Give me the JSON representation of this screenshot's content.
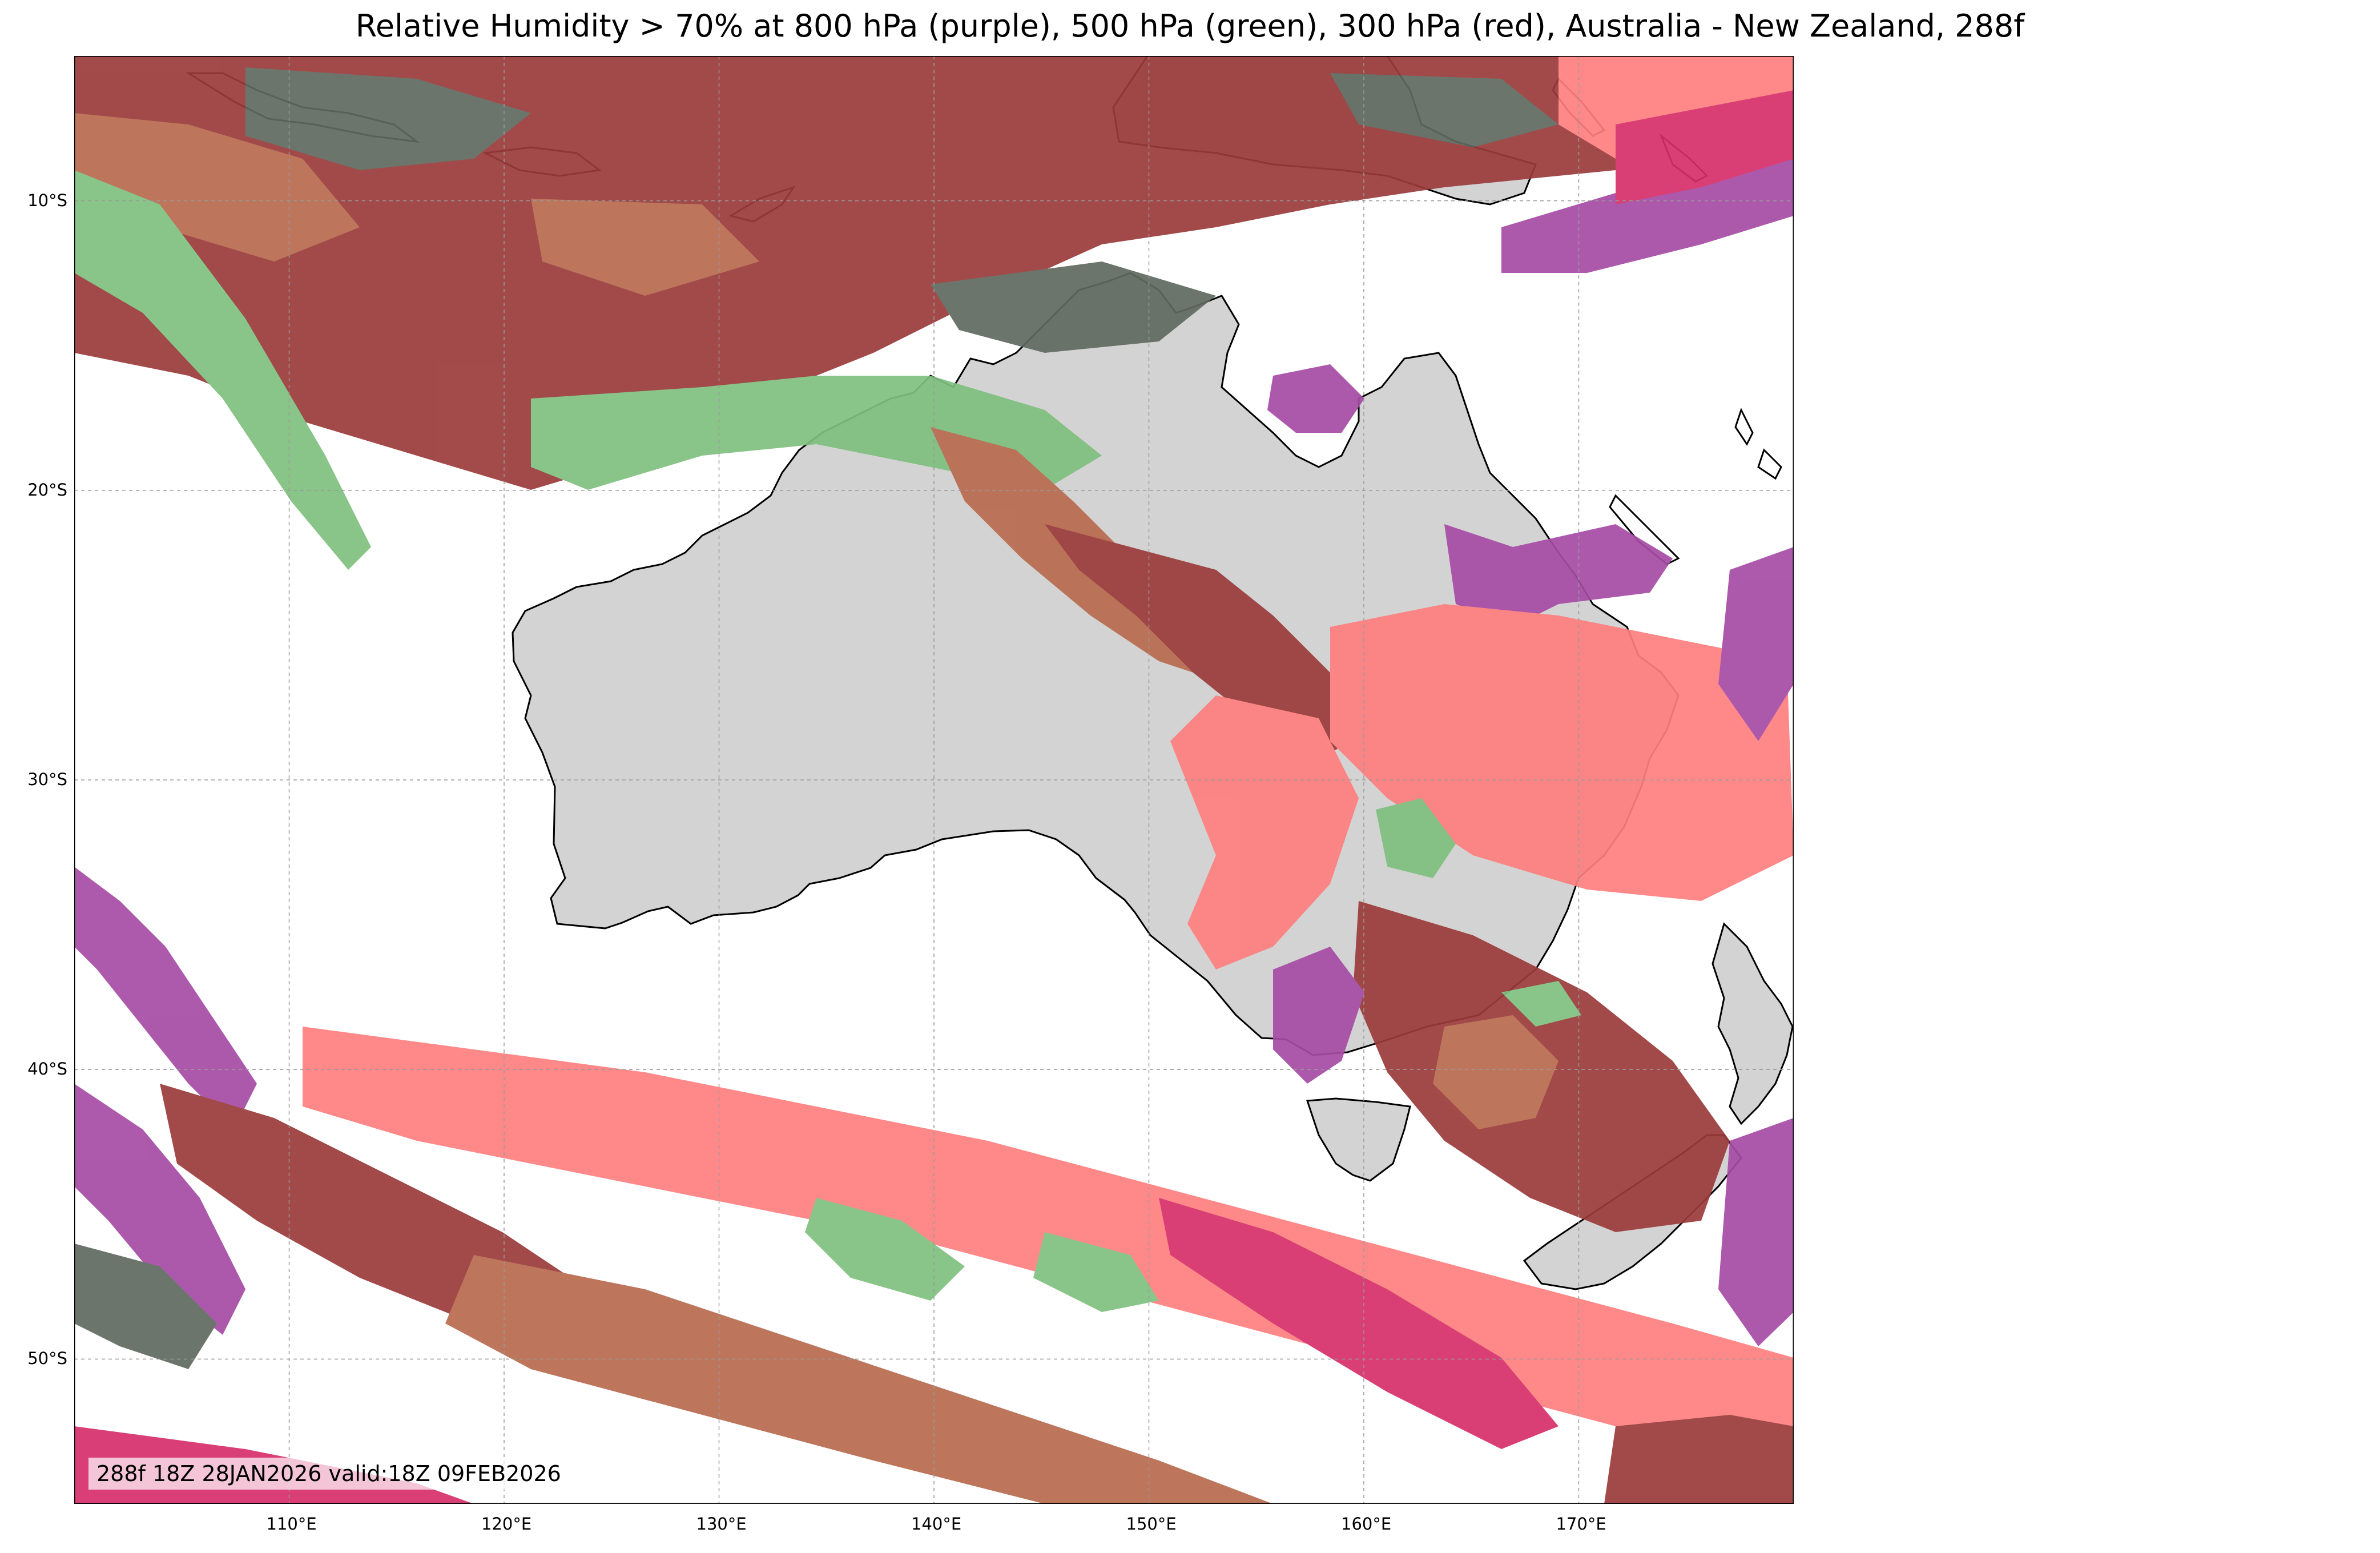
{
  "title": "Relative Humidity > 70% at 800 hPa (purple), 500 hPa (green), 300 hPa (red), Australia - New Zealand, 288f",
  "stamp": "288f 18Z 28JAN2026 valid:18Z 09FEB2026",
  "map": {
    "region": "Australia - New Zealand",
    "lon_range": [
      100,
      180
    ],
    "lat_range": [
      -55,
      -5
    ],
    "gridlines": true,
    "lat_ticks": [
      {
        "value": -10,
        "label": "10°S"
      },
      {
        "value": -20,
        "label": "20°S"
      },
      {
        "value": -30,
        "label": "30°S"
      },
      {
        "value": -40,
        "label": "40°S"
      },
      {
        "value": -50,
        "label": "50°S"
      }
    ],
    "lon_ticks": [
      {
        "value": 110,
        "label": "110°E"
      },
      {
        "value": 120,
        "label": "120°E"
      },
      {
        "value": 130,
        "label": "130°E"
      },
      {
        "value": 140,
        "label": "140°E"
      },
      {
        "value": 150,
        "label": "150°E"
      },
      {
        "value": 160,
        "label": "160°E"
      },
      {
        "value": 170,
        "label": "170°E"
      }
    ],
    "colors": {
      "land": "#d3d3d3",
      "rh_800hPa": "#a64ca6",
      "rh_500hPa": "#7fbf7f",
      "rh_300hPa": "#ff7f7f",
      "overlap_300_800": "#d62f6a",
      "overlap_300_500": "#b86b4e",
      "overlap_500_800": "#5f6a5f",
      "overlap_all": "#9b3b3b"
    },
    "layers": [
      "800 hPa",
      "500 hPa",
      "300 hPa"
    ]
  }
}
